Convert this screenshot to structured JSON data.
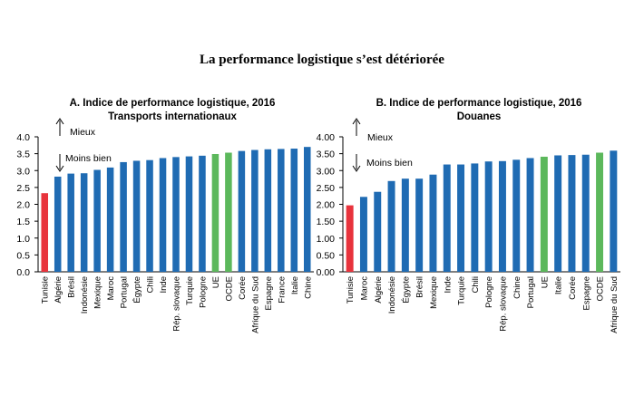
{
  "title": "La performance logistique s’est détériorée",
  "colors": {
    "default": "#1f6bb3",
    "highlight": "#e8333c",
    "benchmark": "#5cb85c"
  },
  "annotations": {
    "up": "Mieux",
    "down": "Moins bien"
  },
  "chart_data": [
    {
      "type": "bar",
      "title": "A. Indice de performance logistique, 2016",
      "subtitle": "Transports internationaux",
      "ylim": [
        0,
        4.0
      ],
      "yticks": [
        "4.0",
        "3.5",
        "3.0",
        "2.5",
        "2.0",
        "1.5",
        "1.0",
        "0.5",
        "0.0"
      ],
      "grid": false,
      "categories": [
        "Tunisie",
        "Algérie",
        "Brésil",
        "Indonésie",
        "Mexique",
        "Maroc",
        "Portugal",
        "Égypte",
        "Chili",
        "Inde",
        "Rép. slovaque",
        "Turquie",
        "Pologne",
        "UE",
        "OCDE",
        "Corée",
        "Afrique du Sud",
        "Espagne",
        "France",
        "Italie",
        "Chine"
      ],
      "values": [
        2.33,
        2.82,
        2.91,
        2.92,
        3.02,
        3.09,
        3.25,
        3.29,
        3.31,
        3.37,
        3.4,
        3.42,
        3.44,
        3.49,
        3.53,
        3.58,
        3.61,
        3.63,
        3.64,
        3.65,
        3.7
      ],
      "colors": [
        "highlight",
        "default",
        "default",
        "default",
        "default",
        "default",
        "default",
        "default",
        "default",
        "default",
        "default",
        "default",
        "default",
        "benchmark",
        "benchmark",
        "default",
        "default",
        "default",
        "default",
        "default",
        "default"
      ]
    },
    {
      "type": "bar",
      "title": "B. Indice de performance logistique, 2016",
      "subtitle": "Douanes",
      "ylim": [
        0,
        4.0
      ],
      "yticks": [
        "4.00",
        "3.50",
        "3.00",
        "2.50",
        "2.00",
        "1.50",
        "1.00",
        "0.50",
        "0.00"
      ],
      "grid": false,
      "categories": [
        "Tunisie",
        "Maroc",
        "Algérie",
        "Indonésie",
        "Égypte",
        "Brésil",
        "Mexique",
        "Inde",
        "Turquie",
        "Chili",
        "Pologne",
        "Rép. slovaque",
        "Chine",
        "Portugal",
        "UE",
        "Italie",
        "Corée",
        "Espagne",
        "OCDE",
        "Afrique du Sud"
      ],
      "values": [
        1.97,
        2.22,
        2.37,
        2.69,
        2.76,
        2.76,
        2.88,
        3.18,
        3.18,
        3.21,
        3.27,
        3.28,
        3.32,
        3.37,
        3.41,
        3.45,
        3.46,
        3.47,
        3.53,
        3.59
      ],
      "colors": [
        "highlight",
        "default",
        "default",
        "default",
        "default",
        "default",
        "default",
        "default",
        "default",
        "default",
        "default",
        "default",
        "default",
        "default",
        "benchmark",
        "default",
        "default",
        "default",
        "benchmark",
        "default"
      ]
    }
  ]
}
